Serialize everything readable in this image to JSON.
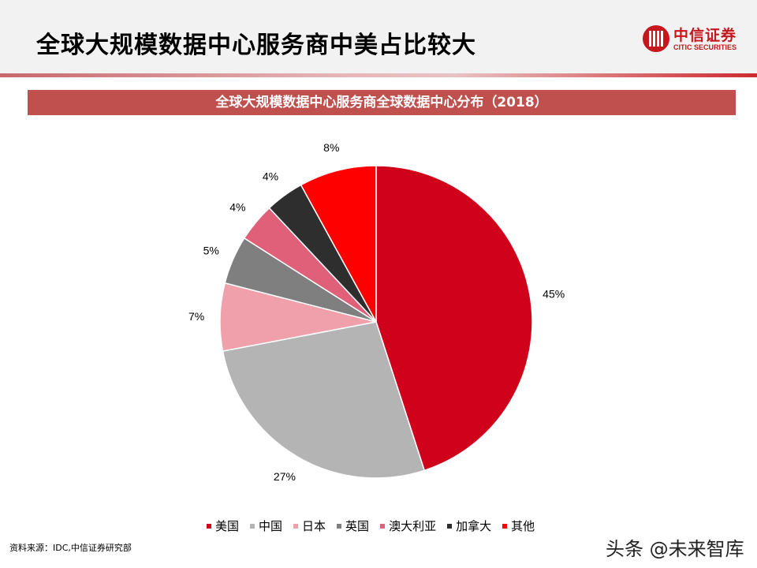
{
  "header": {
    "title": "全球大规模数据中心服务商中美占比较大"
  },
  "logo": {
    "cn": "中信证券",
    "en": "CITIC SECURITIES"
  },
  "chart_data": {
    "type": "pie",
    "title": "全球大规模数据中心服务商全球数据中心分布（2018）",
    "categories": [
      "美国",
      "中国",
      "日本",
      "英国",
      "澳大利亚",
      "加拿大",
      "其他"
    ],
    "values": [
      45,
      27,
      7,
      5,
      4,
      4,
      8
    ],
    "labels": [
      "45%",
      "27%",
      "7%",
      "5%",
      "4%",
      "4%",
      "8%"
    ],
    "colors": [
      "#d0021b",
      "#b4b4b4",
      "#f0a0aa",
      "#7f7f7f",
      "#e0607a",
      "#2e2e2e",
      "#ff0000"
    ],
    "start": "12 o'clock",
    "direction": "clockwise",
    "legend": "bottom"
  },
  "footer": {
    "source": "资料来源：IDC,中信证券研究部",
    "watermark": "头条 @未来智库"
  }
}
